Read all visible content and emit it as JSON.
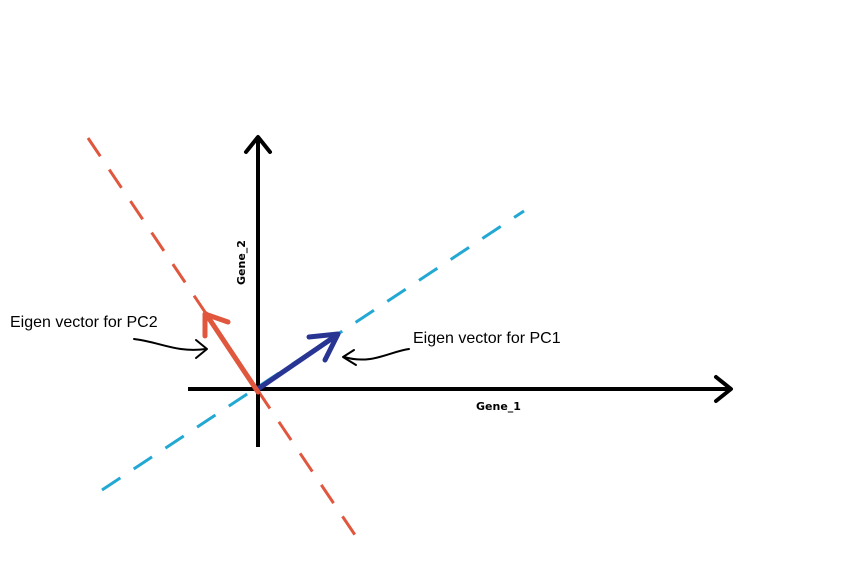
{
  "axes": {
    "x_label": "Gene_1",
    "y_label": "Gene_2"
  },
  "annotations": {
    "pc1_label": "Eigen vector for PC1",
    "pc2_label": "Eigen vector for PC2"
  },
  "colors": {
    "axis": "#000000",
    "pc1_line": "#23a8d4",
    "pc1_vector": "#283593",
    "pc2_line": "#e0573e",
    "pc2_vector": "#e0573e",
    "callout_arrow": "#000000"
  },
  "icons": {
    "pc1_callout": "curved-arrow-left-icon",
    "pc2_callout": "curved-arrow-right-icon"
  }
}
